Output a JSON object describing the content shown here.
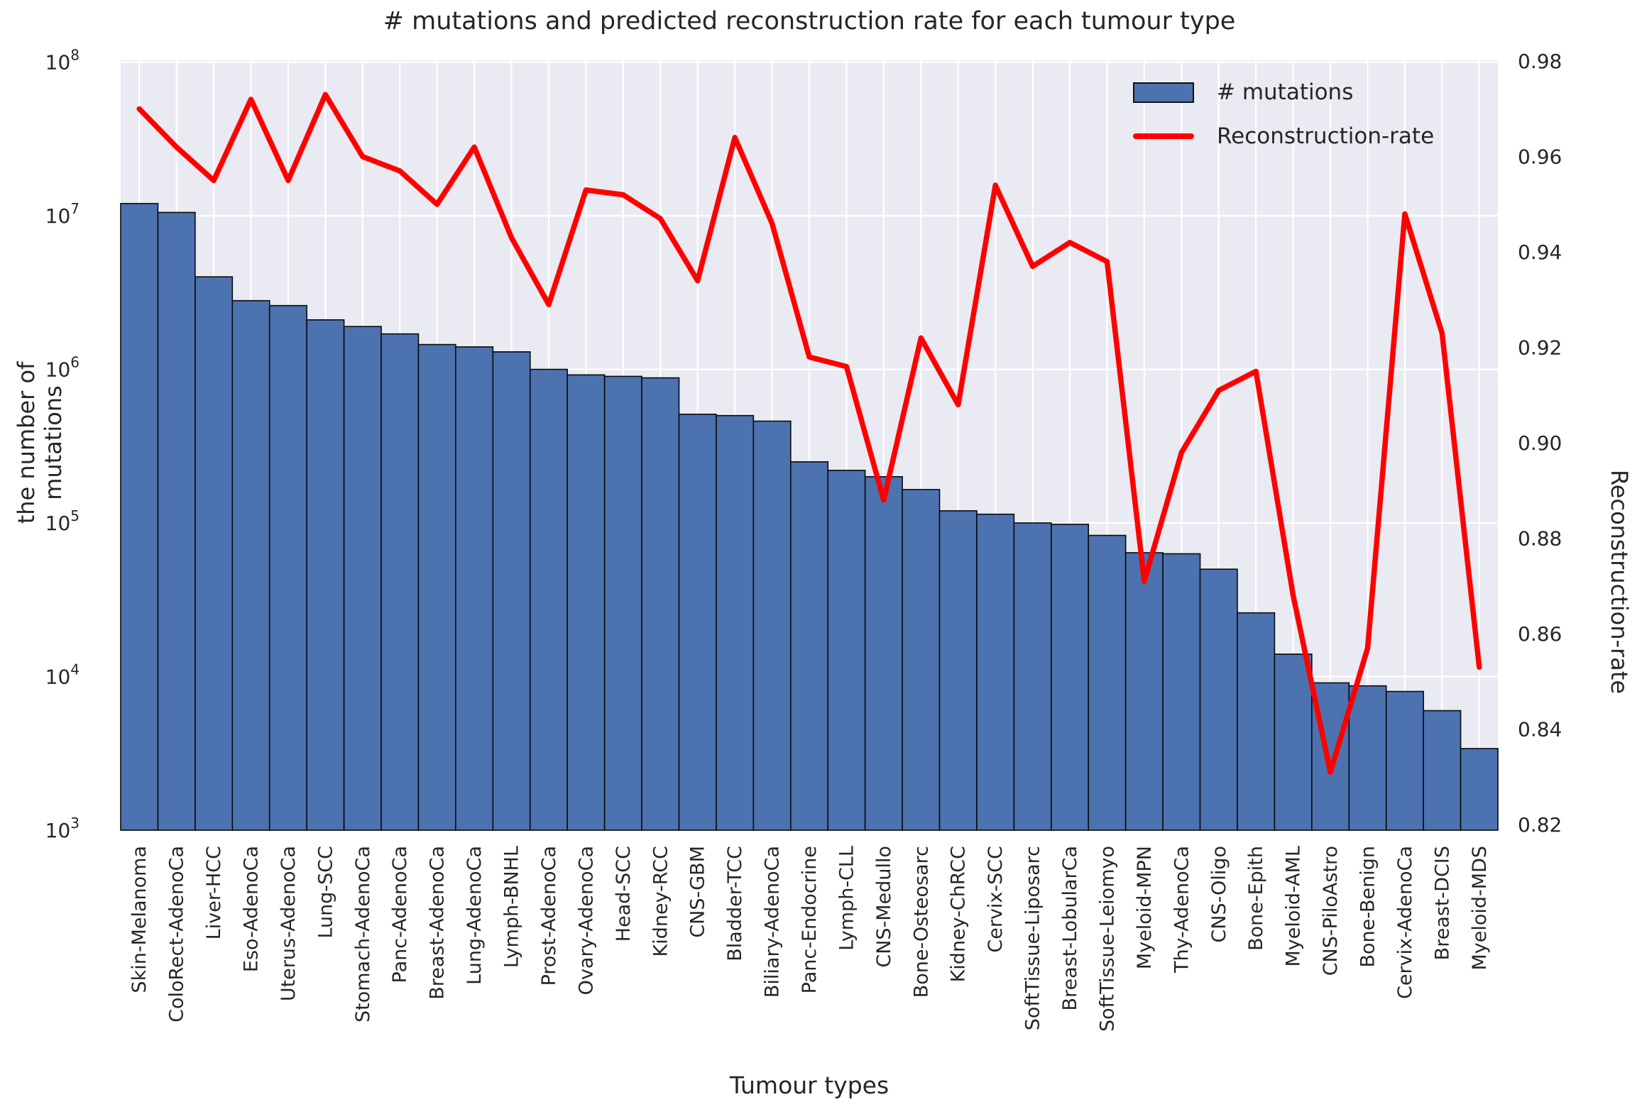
{
  "title": "# mutations and predicted reconstruction rate for each tumour type",
  "axes": {
    "x_label": "Tumour types",
    "y_left_label": "the number of mutations",
    "y_right_label": "Reconstruction-rate",
    "y_left_tick_exponents": [
      8,
      7,
      6,
      5,
      4,
      3
    ],
    "y_right_tick_labels": [
      "0.98",
      "0.96",
      "0.94",
      "0.92",
      "0.90",
      "0.88",
      "0.86",
      "0.84",
      "0.82"
    ]
  },
  "legend": {
    "items": [
      {
        "label": "# mutations",
        "swatch": "bar-swatch"
      },
      {
        "label": "Reconstruction-rate",
        "swatch": "line-swatch"
      }
    ]
  },
  "colors": {
    "bar_fill": "#4C72B0",
    "bar_edge": "#0a0a0a",
    "line": "#FF0000",
    "plot_bg": "#EAEAF2",
    "grid": "#FFFFFF",
    "text": "#262626"
  },
  "chart_data": {
    "type": "bar+line",
    "title": "# mutations and predicted reconstruction rate for each tumour type",
    "xlabel": "Tumour types",
    "ylabel_left": "the number of mutations",
    "ylabel_right": "Reconstruction-rate",
    "y_left_scale": "log",
    "y_left_range": [
      1000,
      100000000
    ],
    "y_right_scale": "linear",
    "y_right_ticks": [
      0.98,
      0.96,
      0.94,
      0.92,
      0.9,
      0.88,
      0.86,
      0.84,
      0.82
    ],
    "grid": true,
    "legend_position": "upper right",
    "categories": [
      "Skin-Melanoma",
      "ColoRect-AdenoCa",
      "Liver-HCC",
      "Eso-AdenoCa",
      "Uterus-AdenoCa",
      "Lung-SCC",
      "Stomach-AdenoCa",
      "Panc-AdenoCa",
      "Breast-AdenoCa",
      "Lung-AdenoCa",
      "Lymph-BNHL",
      "Prost-AdenoCa",
      "Ovary-AdenoCa",
      "Head-SCC",
      "Kidney-RCC",
      "CNS-GBM",
      "Bladder-TCC",
      "Biliary-AdenoCa",
      "Panc-Endocrine",
      "Lymph-CLL",
      "CNS-Medullo",
      "Bone-Osteosarc",
      "Kidney-ChRCC",
      "Cervix-SCC",
      "SoftTissue-Liposarc",
      "Breast-LobularCa",
      "SoftTissue-Leiomyo",
      "Myeloid-MPN",
      "Thy-AdenoCa",
      "CNS-Oligo",
      "Bone-Epith",
      "Myeloid-AML",
      "CNS-PiloAstro",
      "Bone-Benign",
      "Cervix-AdenoCa",
      "Breast-DCIS",
      "Myeloid-MDS"
    ],
    "series": [
      {
        "name": "# mutations",
        "type": "bar",
        "axis": "left",
        "values": [
          12000000,
          10500000,
          4000000,
          2800000,
          2600000,
          2100000,
          1900000,
          1700000,
          1450000,
          1400000,
          1300000,
          1000000,
          920000,
          900000,
          880000,
          510000,
          500000,
          460000,
          250000,
          220000,
          200000,
          165000,
          120000,
          114000,
          100000,
          98000,
          83000,
          64000,
          63000,
          50000,
          26000,
          14000,
          9100,
          8700,
          8000,
          6000,
          3400
        ]
      },
      {
        "name": "Reconstruction-rate",
        "type": "line",
        "axis": "right",
        "values": [
          0.97,
          0.962,
          0.955,
          0.972,
          0.955,
          0.973,
          0.96,
          0.957,
          0.95,
          0.962,
          0.943,
          0.929,
          0.953,
          0.952,
          0.947,
          0.934,
          0.964,
          0.946,
          0.918,
          0.916,
          0.888,
          0.922,
          0.908,
          0.954,
          0.937,
          0.942,
          0.938,
          0.871,
          0.898,
          0.911,
          0.915,
          0.868,
          0.831,
          0.857,
          0.948,
          0.923,
          0.853
        ]
      }
    ]
  }
}
